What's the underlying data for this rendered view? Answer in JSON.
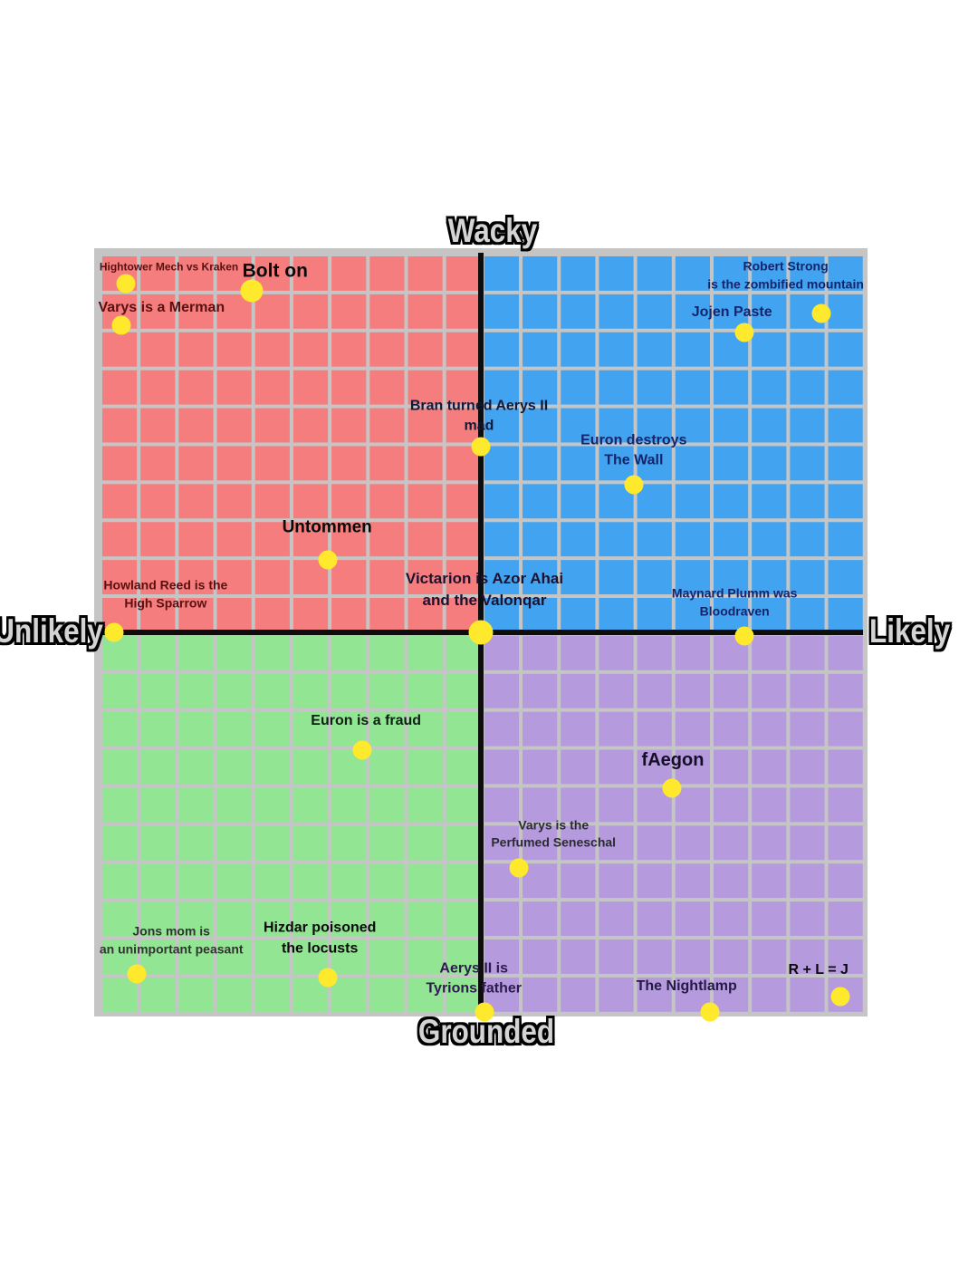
{
  "page": {
    "background": "#ffffff"
  },
  "chart_data": {
    "type": "scatter",
    "title": "",
    "axis_labels": {
      "top": "Wacky",
      "bottom": "Grounded",
      "left": "Unlikely",
      "right": "Likely"
    },
    "x_range": [
      -10,
      10
    ],
    "y_range": [
      -10,
      10
    ],
    "grid": true,
    "grid_color": "#c5c5c5",
    "axis_color": "#0d0d0d",
    "dot_color": "#ffe92c",
    "quadrant_colors": {
      "top_left": "#f57d7d",
      "top_right": "#42a4f0",
      "bottom_left": "#92e592",
      "bottom_right": "#b59ade"
    },
    "points": [
      {
        "label": "Hightower Mech vs Kraken",
        "lines": [
          "Hightower Mech vs Kraken"
        ],
        "x": -9.3,
        "y": 9.2,
        "label_color": "#5a1010",
        "font_size": 12,
        "label_offset": [
          48,
          -18
        ]
      },
      {
        "label": "Bolt on",
        "lines": [
          "Bolt on"
        ],
        "x": -6.0,
        "y": 9.0,
        "label_color": "#0a0a0a",
        "font_size": 21,
        "label_offset": [
          26,
          -22
        ],
        "dot_size": 25
      },
      {
        "label": "Varys is a Merman",
        "lines": [
          "Varys is a Merman"
        ],
        "x": -9.4,
        "y": 8.1,
        "label_color": "#5a1010",
        "font_size": 16,
        "label_offset": [
          44,
          -19
        ]
      },
      {
        "label": "Robert Strong is the zombified mountain",
        "lines": [
          "Robert Strong",
          "is the zombified mountain"
        ],
        "x": 8.9,
        "y": 8.4,
        "label_color": "#16246b",
        "font_size": 14,
        "label_offset": [
          -39,
          -42
        ]
      },
      {
        "label": "Jojen Paste",
        "lines": [
          "Jojen Paste"
        ],
        "x": 6.9,
        "y": 7.9,
        "label_color": "#16246b",
        "font_size": 16,
        "label_offset": [
          -14,
          -22
        ]
      },
      {
        "label": "Bran turned Aerys II mad",
        "lines": [
          "Bran turned Aerys II",
          "mad"
        ],
        "x": 0.0,
        "y": 4.9,
        "label_color": "#101a3a",
        "font_size": 16,
        "label_offset": [
          -2,
          -33
        ]
      },
      {
        "label": "Euron destroys The Wall",
        "lines": [
          "Euron destroys",
          "The Wall"
        ],
        "x": 4.0,
        "y": 3.9,
        "label_color": "#16246b",
        "font_size": 16,
        "label_offset": [
          0,
          -37
        ]
      },
      {
        "label": "Untommen",
        "lines": [
          "Untommen"
        ],
        "x": -4.0,
        "y": 1.9,
        "label_color": "#0a0a0a",
        "font_size": 19,
        "label_offset": [
          -1,
          -35
        ]
      },
      {
        "label": "Victarion is Azor Ahai and the Valonqar",
        "lines": [
          "Victarion is Azor Ahai",
          "and the Valonqar"
        ],
        "x": 0.0,
        "y": 0.0,
        "label_color": "#1c1230",
        "font_size": 17,
        "label_offset": [
          4,
          -47
        ],
        "dot_size": 27
      },
      {
        "label": "Howland Reed is the High Sparrow",
        "lines": [
          "Howland Reed is the",
          "High Sparrow"
        ],
        "x": -9.6,
        "y": 0.0,
        "label_color": "#5a1010",
        "font_size": 14,
        "label_offset": [
          57,
          -42
        ]
      },
      {
        "label": "Maynard Plumm was Bloodraven",
        "lines": [
          "Maynard Plumm was",
          "Bloodraven"
        ],
        "x": 6.9,
        "y": -0.1,
        "label_color": "#16246b",
        "font_size": 14,
        "label_offset": [
          -11,
          -37
        ]
      },
      {
        "label": "Euron is a fraud",
        "lines": [
          "Euron is a fraud"
        ],
        "x": -3.1,
        "y": -3.1,
        "label_color": "#0d2012",
        "font_size": 16,
        "label_offset": [
          4,
          -32
        ]
      },
      {
        "label": "fAegon",
        "lines": [
          "fAegon"
        ],
        "x": 5.0,
        "y": -4.1,
        "label_color": "#140f26",
        "font_size": 20,
        "label_offset": [
          1,
          -31
        ]
      },
      {
        "label": "Varys is the Perfumed Seneschal",
        "lines": [
          "Varys is the",
          "Perfumed Seneschal"
        ],
        "x": 1.0,
        "y": -6.2,
        "label_color": "#2b2b33",
        "font_size": 14,
        "label_offset": [
          38,
          -37
        ]
      },
      {
        "label": "Jons mom is an unimportant peasant",
        "lines": [
          "Jons mom is",
          "an unimportant peasant"
        ],
        "x": -9.0,
        "y": -9.0,
        "label_color": "#333333",
        "font_size": 14,
        "label_offset": [
          38,
          -37
        ]
      },
      {
        "label": "Hizdar poisoned the locusts",
        "lines": [
          "Hizdar poisoned",
          "the locusts"
        ],
        "x": -4.0,
        "y": -9.1,
        "label_color": "#0a0a0a",
        "font_size": 16,
        "label_offset": [
          -9,
          -43
        ]
      },
      {
        "label": "Aerys II is Tyrions father",
        "lines": [
          "Aerys II is",
          "Tyrions father"
        ],
        "x": 0.1,
        "y": -10.0,
        "label_color": "#2d1a4e",
        "font_size": 16,
        "label_offset": [
          -12,
          -36
        ]
      },
      {
        "label": "The Nightlamp",
        "lines": [
          "The Nightlamp"
        ],
        "x": 6.0,
        "y": -10.0,
        "label_color": "#241a45",
        "font_size": 16,
        "label_offset": [
          -26,
          -28
        ]
      },
      {
        "label": "R + L = J",
        "lines": [
          "R + L = J"
        ],
        "x": 9.4,
        "y": -9.6,
        "label_color": "#0a0a0a",
        "font_size": 16,
        "label_offset": [
          -24,
          -29
        ]
      }
    ]
  }
}
